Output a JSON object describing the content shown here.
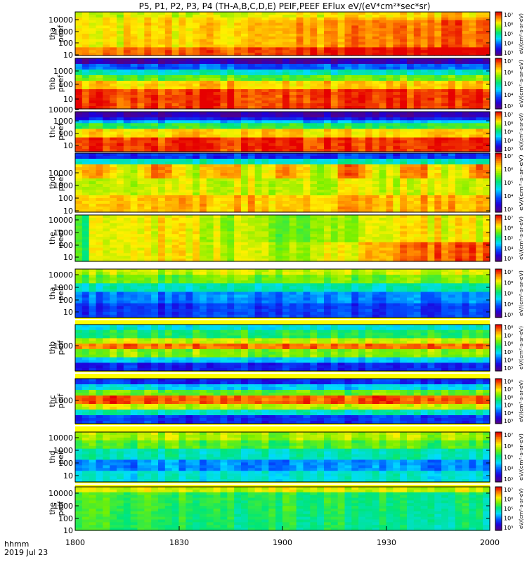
{
  "title": "P5, P1, P2, P3, P4 (TH-A,B,C,D,E) PEIF,PEEF EFlux eV/(eV*cm²*sec*sr)",
  "footer": {
    "line1": "hhmm",
    "line2": "2019 Jul 23"
  },
  "chart_data": {
    "type": "heatmap",
    "x_tick_labels": [
      "1800",
      "1830",
      "1900",
      "1930",
      "2000"
    ],
    "x_range": [
      "18:00",
      "20:00"
    ],
    "y_scale": "log",
    "panels": [
      {
        "probe": "tha",
        "label": [
          "tha",
          "peef"
        ],
        "y_ticks": [
          "10",
          "100",
          "1000",
          "10000"
        ],
        "colorbar_ticks": [
          "10³",
          "10⁴",
          "10⁵",
          "10⁶",
          "10⁷"
        ],
        "colorbar_label": "eV/(cm²-s-sr-eV)"
      },
      {
        "probe": "thb",
        "label": [
          "thb",
          "peef"
        ],
        "y_ticks": [
          "10",
          "100",
          "1000"
        ],
        "colorbar_ticks": [
          "10³",
          "10⁴",
          "10⁵",
          "10⁶",
          "10⁷"
        ],
        "colorbar_label": "eV/(cm²-s-sr-eV)"
      },
      {
        "probe": "thc",
        "label": [
          "thc",
          "peef"
        ],
        "y_ticks": [
          "10",
          "100",
          "1000",
          "10000"
        ],
        "colorbar_ticks": [
          "10³",
          "10⁴",
          "10⁵",
          "10⁶",
          "10⁷"
        ],
        "colorbar_label": "eV/(cm²-s-sr-eV)"
      },
      {
        "probe": "thd",
        "label": [
          "thd",
          "peef"
        ],
        "y_ticks": [
          "10",
          "100",
          "1000",
          "10000"
        ],
        "colorbar_ticks": [
          "10³",
          "10⁴",
          "10⁵",
          "10⁶",
          "10⁷"
        ],
        "colorbar_label": "eV/(cm²-s-sr-eV)"
      },
      {
        "probe": "the",
        "label": [
          "the",
          "peef"
        ],
        "y_ticks": [
          "10",
          "100",
          "1000",
          "10000"
        ],
        "colorbar_ticks": [
          "10³",
          "10⁴",
          "10⁵",
          "10⁶",
          "10⁷"
        ],
        "colorbar_label": "eV/(cm²-s-sr-eV)"
      },
      {
        "probe": "tha",
        "label": [
          "tha",
          "peif"
        ],
        "y_ticks": [
          "10",
          "100",
          "1000",
          "10000"
        ],
        "colorbar_ticks": [
          "10³",
          "10⁴",
          "10⁵",
          "10⁶",
          "10⁷"
        ],
        "colorbar_label": "eV/(cm²-s-sr-eV)"
      },
      {
        "probe": "thb",
        "label": [
          "thb",
          "peif"
        ],
        "y_ticks": [
          "1000"
        ],
        "colorbar_ticks": [
          "10³",
          "10⁴",
          "10⁵",
          "10⁶",
          "10⁷",
          "10⁸"
        ],
        "colorbar_label": "eV/(cm²-s-sr-eV)"
      },
      {
        "probe": "thc",
        "label": [
          "thc",
          "peif"
        ],
        "y_ticks": [
          "1000"
        ],
        "colorbar_ticks": [
          "10³",
          "10⁴",
          "10⁵",
          "10⁶",
          "10⁷",
          "10⁸"
        ],
        "colorbar_label": "eV/(cm²-s-sr-eV)"
      },
      {
        "probe": "thd",
        "label": [
          "thd",
          "peif"
        ],
        "y_ticks": [
          "10",
          "100",
          "1000",
          "10000"
        ],
        "colorbar_ticks": [
          "10³",
          "10⁴",
          "10⁵",
          "10⁶",
          "10⁷"
        ],
        "colorbar_label": "eV/(cm²-s-sr-eV)"
      },
      {
        "probe": "the",
        "label": [
          "the",
          "peif"
        ],
        "y_ticks": [
          "10",
          "100",
          "1000",
          "10000"
        ],
        "colorbar_ticks": [
          "10³",
          "10⁴",
          "10⁵",
          "10⁶",
          "10⁷"
        ],
        "colorbar_label": "eV/(cm²-s-sr-eV)"
      }
    ]
  }
}
